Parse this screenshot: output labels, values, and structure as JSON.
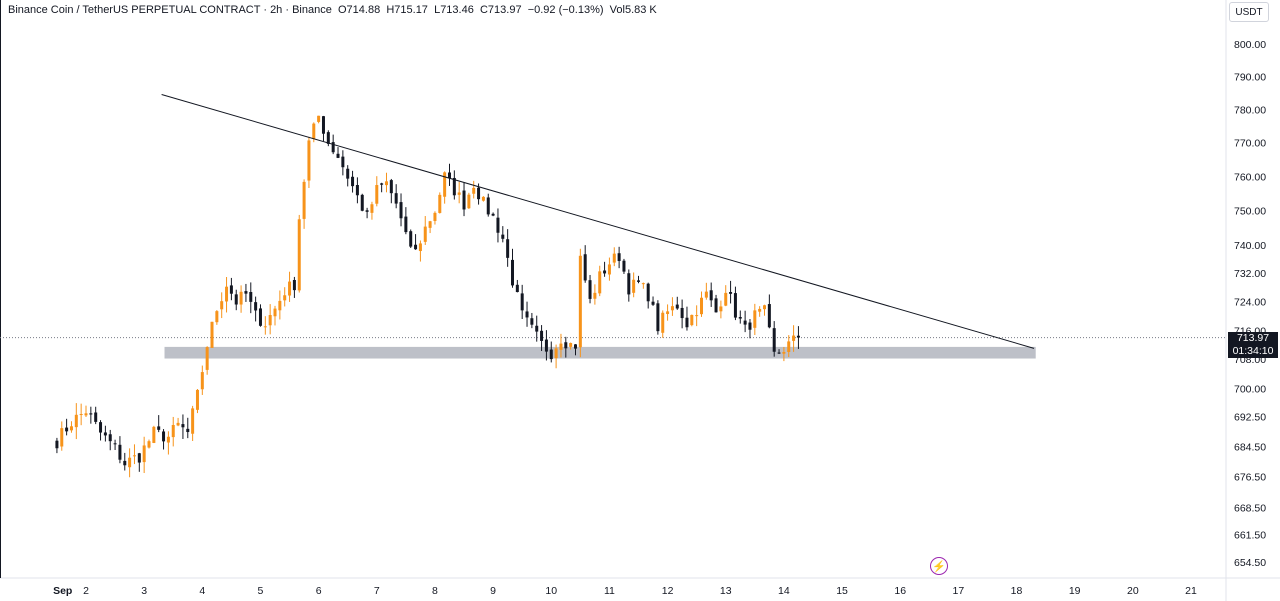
{
  "legend": {
    "symbol": "Binance Coin / TetherUS PERPETUAL CONTRACT",
    "interval": "2h",
    "exchange": "Binance",
    "open_label": "O",
    "open": "714.88",
    "high_label": "H",
    "high": "715.17",
    "low_label": "L",
    "low": "713.46",
    "close_label": "C",
    "close": "713.97",
    "change": "−0.92 (−0.13%)",
    "vol_label": "Vol",
    "vol": "5.83 K"
  },
  "axis": {
    "unit_label": "USDT"
  },
  "last_price": {
    "price": "713.97",
    "countdown": "01:34:10"
  },
  "icons": {
    "bolt": "lightning-icon"
  },
  "colors": {
    "up": "#f7931a",
    "down": "#131722",
    "support_zone": "#b2b5be",
    "trendline": "#131722"
  },
  "chart_data": {
    "type": "candlestick",
    "y_scale": "log",
    "ylim": [
      651,
      811
    ],
    "y_ticks": [
      "654.50",
      "661.50",
      "668.50",
      "676.50",
      "684.50",
      "692.50",
      "700.00",
      "708.00",
      "716.00",
      "724.00",
      "732.00",
      "740.00",
      "750.00",
      "760.00",
      "770.00",
      "780.00",
      "790.00",
      "800.00"
    ],
    "x_day_range": [
      1.45,
      21.8
    ],
    "x_ticks": [
      {
        "label": "Sep",
        "day": 1.6
      },
      {
        "label": "2",
        "day": 2
      },
      {
        "label": "3",
        "day": 3
      },
      {
        "label": "4",
        "day": 4
      },
      {
        "label": "5",
        "day": 5
      },
      {
        "label": "6",
        "day": 6
      },
      {
        "label": "7",
        "day": 7
      },
      {
        "label": "8",
        "day": 8
      },
      {
        "label": "9",
        "day": 9
      },
      {
        "label": "10",
        "day": 10
      },
      {
        "label": "11",
        "day": 11
      },
      {
        "label": "12",
        "day": 12
      },
      {
        "label": "13",
        "day": 13
      },
      {
        "label": "14",
        "day": 14
      },
      {
        "label": "15",
        "day": 15
      },
      {
        "label": "16",
        "day": 16
      },
      {
        "label": "17",
        "day": 17
      },
      {
        "label": "18",
        "day": 18
      },
      {
        "label": "19",
        "day": 19
      },
      {
        "label": "20",
        "day": 20
      },
      {
        "label": "21",
        "day": 21
      }
    ],
    "first_candle_day": 1.5,
    "candles_per_day": 12,
    "anchors": [
      [
        0,
        686
      ],
      [
        3,
        691
      ],
      [
        6,
        694
      ],
      [
        9,
        688
      ],
      [
        12,
        684
      ],
      [
        14,
        680
      ],
      [
        17,
        682
      ],
      [
        20,
        688
      ],
      [
        23,
        687
      ],
      [
        25,
        690
      ],
      [
        27,
        688
      ],
      [
        29,
        698
      ],
      [
        31,
        712
      ],
      [
        33,
        722
      ],
      [
        35,
        729
      ],
      [
        37,
        724
      ],
      [
        39,
        726
      ],
      [
        41,
        720
      ],
      [
        43,
        718
      ],
      [
        45,
        722
      ],
      [
        47,
        727
      ],
      [
        49,
        729
      ],
      [
        50,
        748
      ],
      [
        52,
        770
      ],
      [
        54,
        778
      ],
      [
        56,
        770
      ],
      [
        58,
        766
      ],
      [
        60,
        760
      ],
      [
        62,
        754
      ],
      [
        64,
        748
      ],
      [
        66,
        756
      ],
      [
        68,
        758
      ],
      [
        70,
        752
      ],
      [
        72,
        742
      ],
      [
        74,
        738
      ],
      [
        76,
        745
      ],
      [
        78,
        750
      ],
      [
        80,
        760
      ],
      [
        82,
        756
      ],
      [
        84,
        752
      ],
      [
        86,
        758
      ],
      [
        88,
        752
      ],
      [
        90,
        748
      ],
      [
        92,
        742
      ],
      [
        94,
        730
      ],
      [
        96,
        720
      ],
      [
        98,
        716
      ],
      [
        100,
        712
      ],
      [
        102,
        710
      ],
      [
        104,
        714
      ],
      [
        106,
        712
      ],
      [
        107,
        712
      ],
      [
        108,
        736
      ],
      [
        110,
        724
      ],
      [
        112,
        731
      ],
      [
        114,
        735
      ],
      [
        116,
        737
      ],
      [
        118,
        728
      ],
      [
        120,
        729
      ],
      [
        122,
        726
      ],
      [
        124,
        717
      ],
      [
        126,
        721
      ],
      [
        128,
        723
      ],
      [
        130,
        718
      ],
      [
        132,
        722
      ],
      [
        134,
        726
      ],
      [
        136,
        721
      ],
      [
        138,
        728
      ],
      [
        140,
        721
      ],
      [
        142,
        716
      ],
      [
        144,
        720
      ],
      [
        146,
        721
      ],
      [
        148,
        709
      ],
      [
        150,
        711
      ],
      [
        152,
        713
      ],
      [
        153,
        714
      ]
    ],
    "candles_count": 154,
    "trendline": {
      "start": {
        "day": 3.3,
        "price": 784.5
      },
      "end": {
        "day": 18.3,
        "price": 711
      }
    },
    "support_zone": {
      "day_start": 3.35,
      "day_end": 18.33,
      "price_low": 708.2,
      "price_high": 711.4
    },
    "last_price_line": 713.97
  }
}
